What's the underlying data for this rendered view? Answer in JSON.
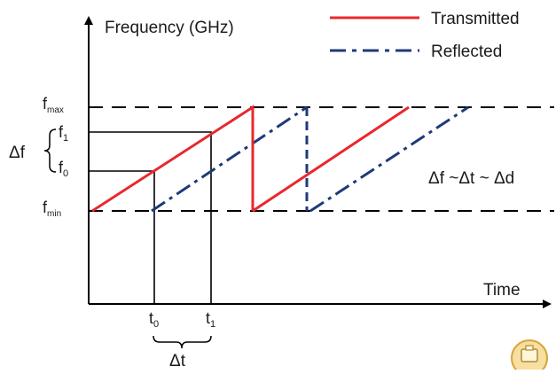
{
  "axes": {
    "y_label": "Frequency (GHz)",
    "x_label": "Time"
  },
  "legend": {
    "transmitted": "Transmitted",
    "reflected": "Reflected"
  },
  "levels": {
    "f_max": {
      "base": "f",
      "sub": "max"
    },
    "f1": {
      "base": "f",
      "sub": "1"
    },
    "f0": {
      "base": "f",
      "sub": "0"
    },
    "f_min": {
      "base": "f",
      "sub": "min"
    }
  },
  "time_marks": {
    "t0": {
      "base": "t",
      "sub": "0"
    },
    "t1": {
      "base": "t",
      "sub": "1"
    }
  },
  "annotations": {
    "delta_f": "Δf",
    "delta_t": "Δt",
    "relation": "Δf ~Δt ~ Δd"
  },
  "colors": {
    "transmitted": "#e8282e",
    "reflected": "#1e3a7a",
    "axis": "#000000",
    "badge_fill": "#f6dfa0",
    "badge_stroke": "#d9a437"
  }
}
